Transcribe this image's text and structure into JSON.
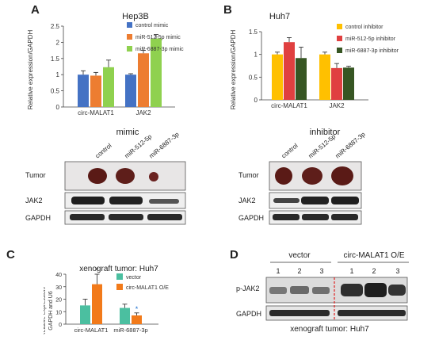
{
  "panels": {
    "A": {
      "letter": "A",
      "title": "Hep3B",
      "blot_title": "mimic",
      "blot_columns": [
        "control",
        "miR-512-5p",
        "miR-6887-3p"
      ],
      "blot_rows": [
        "Tumor",
        "JAK2",
        "GAPDH"
      ]
    },
    "B": {
      "letter": "B",
      "title": "Huh7",
      "blot_title": "inhibitor",
      "blot_columns": [
        "control",
        "miR-512-5p",
        "miR-6887-3p"
      ],
      "blot_rows": [
        "Tumor",
        "JAK2",
        "GAPDH"
      ]
    },
    "C": {
      "letter": "C",
      "title": "xenograft tumor: Huh7"
    },
    "D": {
      "letter": "D",
      "groups": [
        "vector",
        "circ-MALAT1 O/E"
      ],
      "lanes": [
        "1",
        "2",
        "3",
        "1",
        "2",
        "3"
      ],
      "blot_rows": [
        "p-JAK2",
        "GAPDH"
      ],
      "caption": "xenograft tumor: Huh7"
    }
  },
  "chart_data": [
    {
      "id": "A",
      "type": "bar",
      "title": "Hep3B",
      "ylabel": "Relative expression/GAPDH",
      "categories": [
        "circ-MALAT1",
        "JAK2"
      ],
      "ylim": [
        0,
        2.5
      ],
      "yticks": [
        "0",
        "0.5",
        "1",
        "1.5",
        "2",
        "2.5"
      ],
      "series": [
        {
          "name": "control mimic",
          "values": [
            1.0,
            1.0
          ],
          "errors": [
            0.12,
            0.03
          ],
          "color": "#4472c4"
        },
        {
          "name": "miR-512-5p mimic",
          "values": [
            0.97,
            1.66
          ],
          "errors": [
            0.1,
            0.09
          ],
          "color": "#ed7d31"
        },
        {
          "name": "miR-6887-3p mimic",
          "values": [
            1.23,
            2.12
          ],
          "errors": [
            0.22,
            0.12
          ],
          "color": "#8fd14f"
        }
      ]
    },
    {
      "id": "B",
      "type": "bar",
      "title": "Huh7",
      "ylabel": "Relative expression/GAPDH",
      "categories": [
        "circ-MALAT1",
        "JAK2"
      ],
      "ylim": [
        0,
        1.5
      ],
      "yticks": [
        "0",
        "0.5",
        "1",
        "1.5"
      ],
      "series": [
        {
          "name": "control inhibitor",
          "values": [
            1.0,
            1.0
          ],
          "errors": [
            0.05,
            0.05
          ],
          "color": "#ffc000"
        },
        {
          "name": "miR-512-5p inhibitor",
          "values": [
            1.27,
            0.7
          ],
          "errors": [
            0.1,
            0.1
          ],
          "color": "#e04040"
        },
        {
          "name": "miR-6887-3p inhibitor",
          "values": [
            0.92,
            0.71
          ],
          "errors": [
            0.24,
            0.03
          ],
          "color": "#375623"
        }
      ]
    },
    {
      "id": "C",
      "type": "bar",
      "title": "xenograft tumor: Huh7",
      "ylabel": "Relative expression/ GAPDH and U6",
      "categories": [
        "circ-MALAT1",
        "miR-6887-3p"
      ],
      "ylim": [
        0,
        40
      ],
      "yticks": [
        "0",
        "10",
        "20",
        "30",
        "40"
      ],
      "significance": [
        {
          "category": "circ-MALAT1",
          "text": "*"
        },
        {
          "category": "miR-6887-3p",
          "text": "*"
        }
      ],
      "series": [
        {
          "name": "vector",
          "values": [
            15,
            13
          ],
          "errors": [
            5,
            3
          ],
          "color": "#4bbfa0"
        },
        {
          "name": "circ-MALAT1 O/E",
          "values": [
            32,
            7
          ],
          "errors": [
            8,
            2
          ],
          "color": "#f27a1a"
        }
      ]
    }
  ]
}
